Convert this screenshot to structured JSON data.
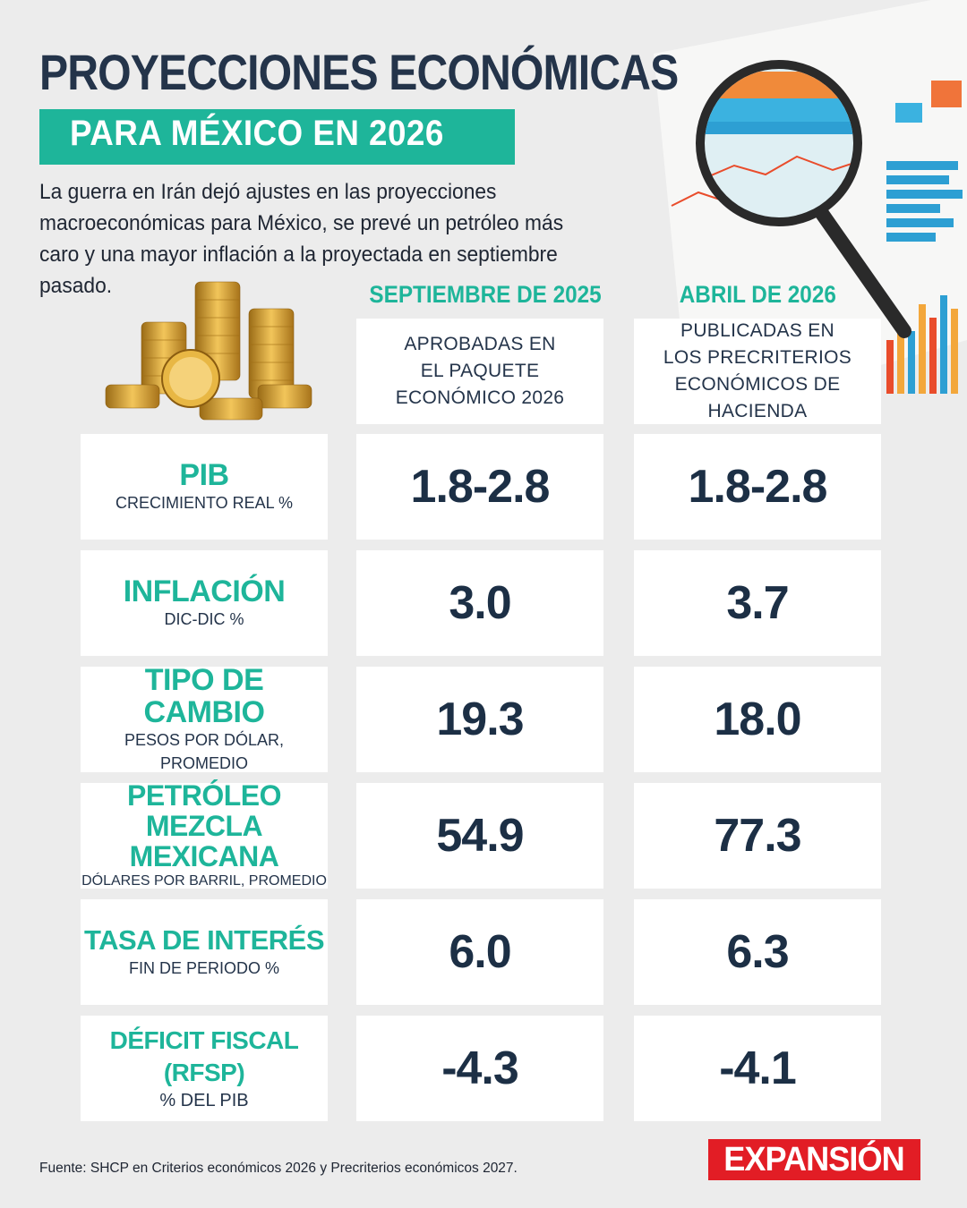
{
  "header": {
    "title": "PROYECCIONES ECONÓMICAS",
    "subtitle": "PARA MÉXICO EN 2026",
    "intro": "La guerra en Irán dejó ajustes en las proyecciones macroeconómicas para México, se prevé un petróleo más caro y una mayor inflación a la proyectada en septiembre pasado."
  },
  "columns": [
    {
      "heading": "SEPTIEMBRE DE 2025",
      "desc_lines": [
        "APROBADAS EN",
        "EL PAQUETE",
        "ECONÓMICO 2026"
      ]
    },
    {
      "heading": "ABRIL DE 2026",
      "desc_lines": [
        "PUBLICADAS EN",
        "LOS PRECRITERIOS",
        "ECONÓMICOS DE HACIENDA"
      ]
    }
  ],
  "rows": [
    {
      "label": "PIB",
      "sub": "CRECIMIENTO REAL %",
      "sep2025": "1.8-2.8",
      "abr2026": "1.8-2.8"
    },
    {
      "label": "INFLACIÓN",
      "sub": "DIC-DIC %",
      "sep2025": "3.0",
      "abr2026": "3.7"
    },
    {
      "label": "TIPO DE CAMBIO",
      "sub": "PESOS POR DÓLAR, PROMEDIO",
      "sep2025": "19.3",
      "abr2026": "18.0"
    },
    {
      "label": "PETRÓLEO MEZCLA MEXICANA",
      "sub": "DÓLARES POR BARRIL, PROMEDIO",
      "sep2025": "54.9",
      "abr2026": "77.3"
    },
    {
      "label": "TASA DE INTERÉS",
      "sub": "FIN DE PERIODO %",
      "sep2025": "6.0",
      "abr2026": "6.3"
    },
    {
      "label": "DÉFICIT FISCAL (RFSP)",
      "sub": "% DEL PIB",
      "sep2025": "-4.3",
      "abr2026": "-4.1"
    }
  ],
  "footer": {
    "source": "Fuente: SHCP en Criterios económicos 2026 y Precriterios económicos 2027.",
    "logo": "EXPANSIÓN"
  },
  "colors": {
    "accent": "#1eb59a",
    "navy": "#24344a",
    "background": "#ececec",
    "logo_red": "#e21d25"
  }
}
